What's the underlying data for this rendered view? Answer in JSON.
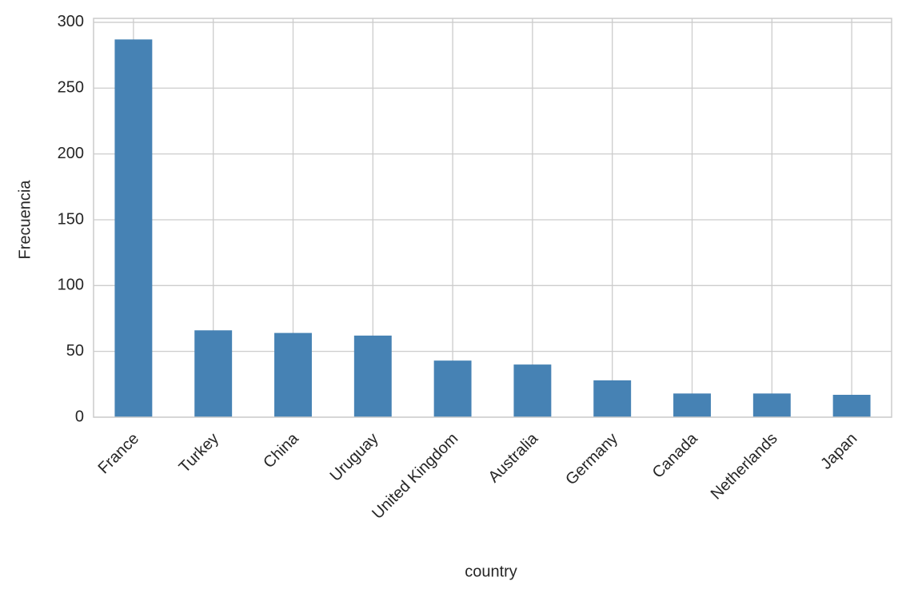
{
  "chart_data": {
    "type": "bar",
    "x_label": "country",
    "y_label": "Frecuencia",
    "categories": [
      "France",
      "Turkey",
      "China",
      "Uruguay",
      "United Kingdom",
      "Australia",
      "Germany",
      "Canada",
      "Netherlands",
      "Japan"
    ],
    "values": [
      287,
      66,
      64,
      62,
      43,
      40,
      28,
      18,
      18,
      17
    ],
    "color": "#4682b4",
    "ylim": [
      0,
      303
    ],
    "yticks": [
      0,
      50,
      100,
      150,
      200,
      250,
      300
    ],
    "grid": true
  }
}
